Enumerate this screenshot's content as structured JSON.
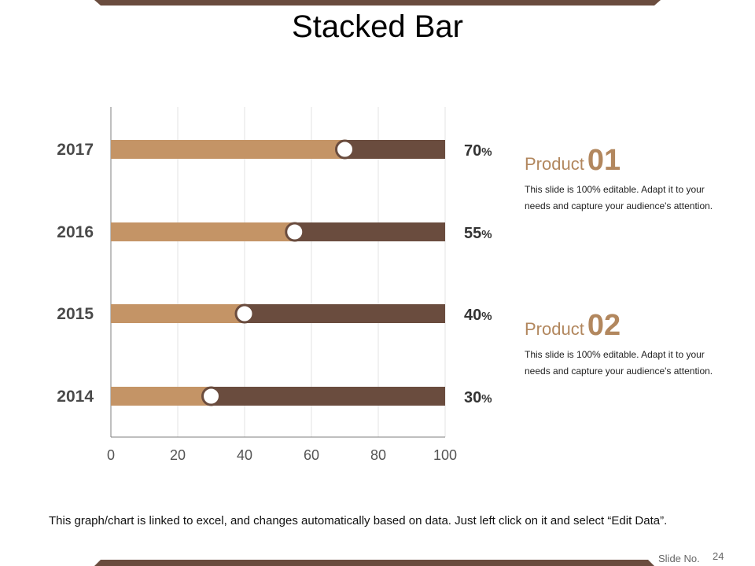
{
  "title": "Stacked Bar",
  "colors": {
    "band": "#6a4c3e",
    "series1": "#c49466",
    "series2": "#6a4c3e",
    "accent": "#b2875e",
    "marker_fill": "#ffffff",
    "marker_stroke": "#6a4c3e"
  },
  "chart_data": {
    "type": "bar",
    "orientation": "horizontal",
    "stacked": true,
    "categories": [
      "2014",
      "2015",
      "2016",
      "2017"
    ],
    "series": [
      {
        "values": [
          30,
          40,
          55,
          70
        ]
      },
      {
        "values": [
          70,
          60,
          45,
          30
        ]
      }
    ],
    "xlim": [
      0,
      100
    ],
    "xticks": [
      "0",
      "20",
      "40",
      "60",
      "80",
      "100"
    ],
    "value_labels": [
      {
        "number": "30",
        "suffix": "%"
      },
      {
        "number": "40",
        "suffix": "%"
      },
      {
        "number": "55",
        "suffix": "%"
      },
      {
        "number": "70",
        "suffix": "%"
      }
    ],
    "grid": true,
    "markers": true
  },
  "products": [
    {
      "word": "Product",
      "number": "01",
      "text": "This slide is 100% editable. Adapt it to your needs and capture your audience's attention."
    },
    {
      "word": "Product",
      "number": "02",
      "text": "This slide is 100% editable. Adapt it to your needs and capture your audience's attention."
    }
  ],
  "footer_note": "This graph/chart is linked to excel, and changes automatically based on data. Just left click on it and select “Edit Data”.",
  "slide_no": {
    "label": "Slide No.",
    "value": "24"
  }
}
